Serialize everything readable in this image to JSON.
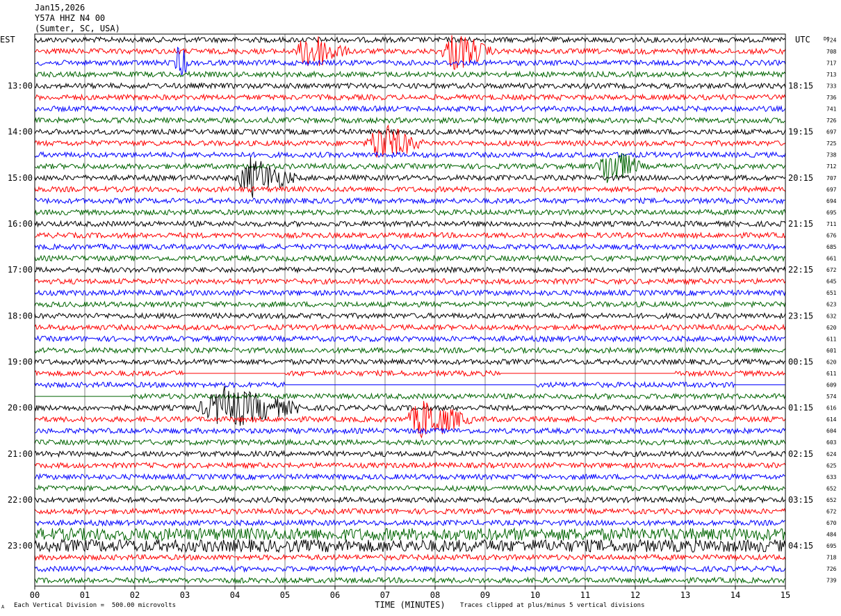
{
  "header": {
    "date": "Jan15,2026",
    "station": "Y57A HHZ N4 00",
    "location": "(Sumter, SC, USA)"
  },
  "left_axis_label": "EST",
  "right_axis_label": "UTC",
  "dc_label": "DC",
  "footer": {
    "scale_note": "Each Vertical Division =  500.00 microvolts",
    "clip_note": "Traces clipped at plus/minus 5 vertical divisions",
    "corner_mark": "A"
  },
  "colors": {
    "black": "#000000",
    "red": "#ff0000",
    "blue": "#0000ff",
    "green": "#006400",
    "grid": "#808080"
  },
  "chart_data": {
    "type": "line",
    "xlabel": "TIME (MINUTES)",
    "xlim": [
      0,
      15
    ],
    "x_ticks": [
      "00",
      "01",
      "02",
      "03",
      "04",
      "05",
      "06",
      "07",
      "08",
      "09",
      "10",
      "11",
      "12",
      "13",
      "14",
      "15"
    ],
    "rows_per_hour": 4,
    "row_minutes": 15,
    "trace_color_cycle": [
      "black",
      "red",
      "blue",
      "green"
    ],
    "est_hour_labels": [
      "13:00",
      "14:00",
      "15:00",
      "16:00",
      "17:00",
      "18:00",
      "19:00",
      "20:00",
      "21:00",
      "22:00",
      "23:00"
    ],
    "utc_hour_labels": [
      "18:15",
      "19:15",
      "20:15",
      "21:15",
      "22:15",
      "23:15",
      "00:15",
      "01:15",
      "02:15",
      "03:15",
      "04:15"
    ],
    "first_labeled_row": 4,
    "dc_offsets": [
      724,
      708,
      717,
      713,
      733,
      736,
      741,
      726,
      697,
      725,
      738,
      712,
      707,
      697,
      694,
      695,
      711,
      676,
      685,
      661,
      672,
      645,
      651,
      623,
      632,
      620,
      611,
      601,
      620,
      611,
      609,
      574,
      616,
      614,
      604,
      603,
      624,
      625,
      633,
      652,
      652,
      672,
      670,
      484,
      695,
      718,
      726,
      739
    ],
    "events": [
      {
        "row": 1,
        "start_min": 5.2,
        "end_min": 6.3
      },
      {
        "row": 1,
        "start_min": 8.1,
        "end_min": 9.2
      },
      {
        "row": 2,
        "start_min": 2.8,
        "end_min": 3.1
      },
      {
        "row": 9,
        "start_min": 6.6,
        "end_min": 7.8
      },
      {
        "row": 12,
        "start_min": 4.0,
        "end_min": 5.3
      },
      {
        "row": 11,
        "start_min": 11.2,
        "end_min": 12.2
      },
      {
        "row": 32,
        "start_min": 3.2,
        "end_min": 5.5
      },
      {
        "row": 33,
        "start_min": 7.4,
        "end_min": 8.8
      }
    ],
    "flat_segments": [
      {
        "row": 29,
        "start_min": 3.0,
        "end_min": 5.0
      },
      {
        "row": 29,
        "start_min": 9.3,
        "end_min": 12.8
      },
      {
        "row": 30,
        "start_min": 5.0,
        "end_min": 10.0
      },
      {
        "row": 30,
        "start_min": 14.0,
        "end_min": 15.0
      },
      {
        "row": 31,
        "start_min": 0.0,
        "end_min": 1.9
      }
    ]
  }
}
